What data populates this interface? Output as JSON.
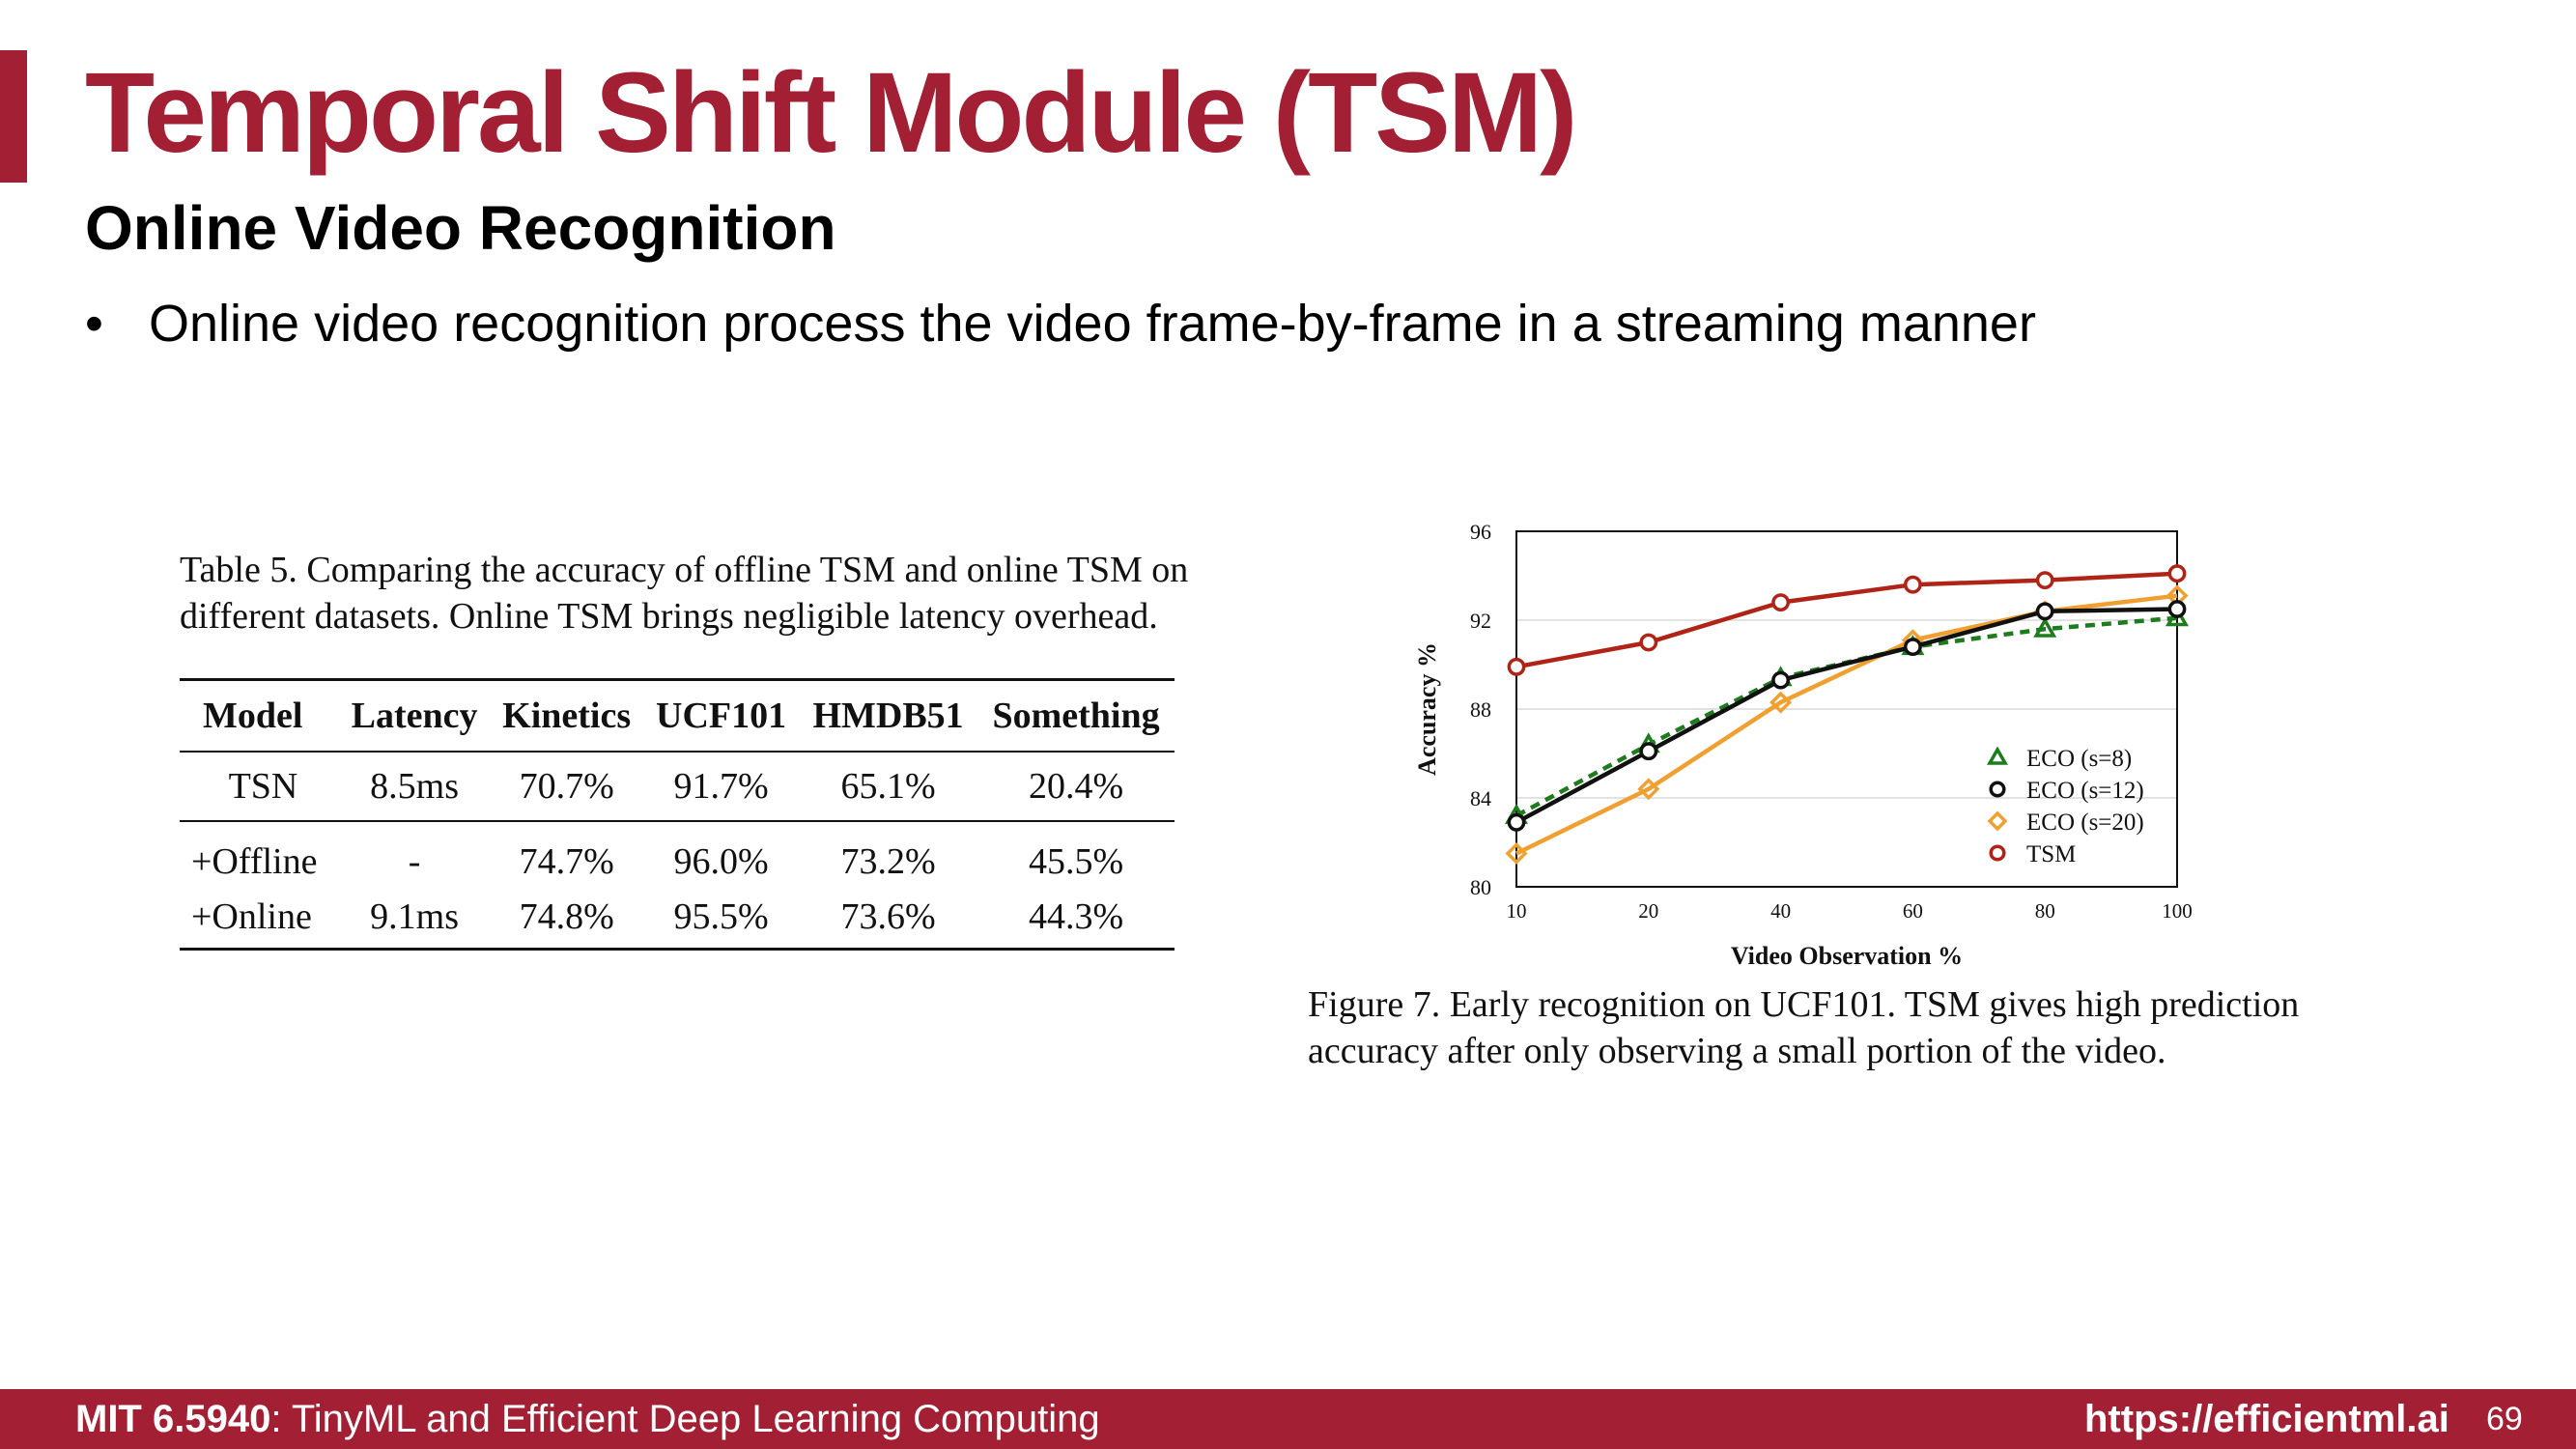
{
  "slide": {
    "title": "Temporal Shift Module (TSM)",
    "subtitle": "Online Video Recognition",
    "bullet_marker": "•",
    "bullet": "Online video recognition process the video frame-by-frame in a streaming manner"
  },
  "table": {
    "caption_lines": [
      "Table 5. Comparing the accuracy of offline TSM and online TSM on",
      "different datasets. Online TSM brings negligible latency overhead."
    ],
    "columns": [
      "Model",
      "Latency",
      "Kinetics",
      "UCF101",
      "HMDB51",
      "Something"
    ],
    "rows": [
      [
        "TSN",
        "8.5ms",
        "70.7%",
        "91.7%",
        "65.1%",
        "20.4%"
      ],
      [
        "+Offline",
        "-",
        "74.7%",
        "96.0%",
        "73.2%",
        "45.5%"
      ],
      [
        "+Online",
        "9.1ms",
        "74.8%",
        "95.5%",
        "73.6%",
        "44.3%"
      ]
    ]
  },
  "chart_data": {
    "type": "line",
    "xlabel": "Video Observation %",
    "ylabel": "Accuracy %",
    "x": [
      10,
      20,
      40,
      60,
      80,
      100
    ],
    "x_scale": "categorical-evenly-spaced",
    "ylim": [
      80,
      96
    ],
    "yticks": [
      80,
      84,
      88,
      92,
      96
    ],
    "grid": "horizontal",
    "legend_position": "lower-right",
    "series": [
      {
        "name": "ECO (s=8)",
        "color": "#1e7b1e",
        "marker": "triangle",
        "dashed": true,
        "values": [
          83.2,
          86.4,
          89.4,
          90.8,
          91.6,
          92.1
        ]
      },
      {
        "name": "ECO (s=12)",
        "color": "#111111",
        "marker": "circle",
        "dashed": false,
        "values": [
          82.9,
          86.1,
          89.3,
          90.8,
          92.4,
          92.5
        ]
      },
      {
        "name": "ECO (s=20)",
        "color": "#f0a030",
        "marker": "diamond",
        "dashed": false,
        "values": [
          81.5,
          84.4,
          88.3,
          91.1,
          92.4,
          93.1
        ]
      },
      {
        "name": "TSM",
        "color": "#b02418",
        "marker": "circle",
        "dashed": false,
        "values": [
          89.9,
          91.0,
          92.8,
          93.6,
          93.8,
          94.1
        ]
      }
    ]
  },
  "figure": {
    "caption_lines": [
      "Figure 7. Early recognition on UCF101. TSM gives high prediction",
      "accuracy after only observing a small portion of the video."
    ]
  },
  "footer": {
    "course_code": "MIT 6.5940",
    "course_name": ": TinyML and Efficient Deep Learning Computing",
    "url": "https://efficientml.ai",
    "page_number": "69"
  },
  "colors": {
    "accent": "#a31f34"
  }
}
